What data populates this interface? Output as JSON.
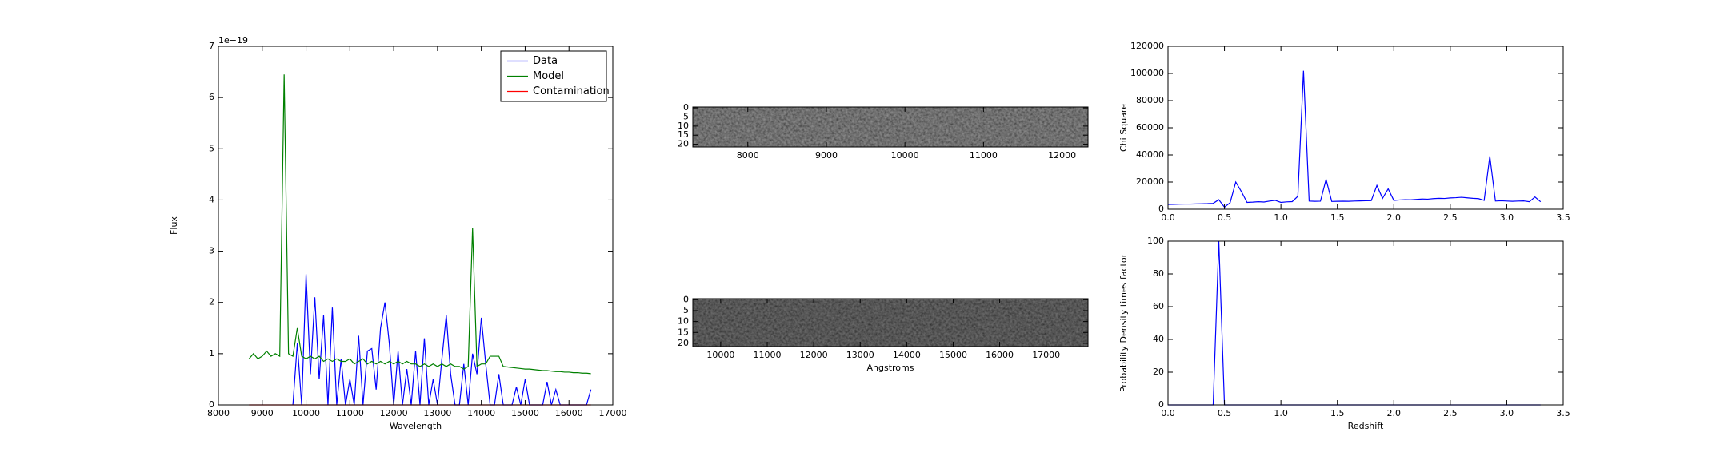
{
  "chart_data": [
    {
      "type": "line",
      "offset_label": "1e−19",
      "xlabel": "Wavelength",
      "ylabel": "Flux",
      "legend": "upper right",
      "xlim": [
        8000,
        17000
      ],
      "ylim": [
        0,
        7
      ],
      "xticks": [
        8000,
        9000,
        10000,
        11000,
        12000,
        13000,
        14000,
        15000,
        16000,
        17000
      ],
      "yticks": [
        0,
        1,
        2,
        3,
        4,
        5,
        6,
        7
      ],
      "x": [
        8700,
        8800,
        8900,
        9000,
        9100,
        9200,
        9300,
        9400,
        9500,
        9600,
        9700,
        9800,
        9900,
        10000,
        10100,
        10200,
        10300,
        10400,
        10500,
        10600,
        10700,
        10800,
        10900,
        11000,
        11100,
        11200,
        11300,
        11400,
        11500,
        11600,
        11700,
        11800,
        11900,
        12000,
        12100,
        12200,
        12300,
        12400,
        12500,
        12600,
        12700,
        12800,
        12900,
        13000,
        13100,
        13200,
        13300,
        13400,
        13500,
        13600,
        13700,
        13800,
        13900,
        14000,
        14100,
        14200,
        14300,
        14400,
        14500,
        14600,
        14700,
        14800,
        14900,
        15000,
        15100,
        15200,
        15300,
        15400,
        15500,
        15600,
        15700,
        15800,
        15900,
        16000,
        16100,
        16200,
        16300,
        16400,
        16500
      ],
      "series": [
        {
          "name": "Data",
          "color": "#0000ff",
          "values": [
            null,
            null,
            null,
            null,
            null,
            null,
            null,
            null,
            null,
            null,
            0,
            1.2,
            0,
            2.55,
            0.6,
            2.1,
            0.5,
            1.75,
            0,
            1.9,
            0,
            0.9,
            0,
            0.5,
            0,
            1.35,
            0,
            1.05,
            1.1,
            0.3,
            1.5,
            2.0,
            1.2,
            0,
            1.05,
            0,
            0.7,
            0,
            1.05,
            0,
            1.3,
            0,
            0.5,
            0,
            0.9,
            1.75,
            0.6,
            0,
            0,
            0.8,
            0,
            1.0,
            0.6,
            1.7,
            0.8,
            0,
            0,
            0.6,
            0,
            0,
            0,
            0.35,
            0,
            0.5,
            0,
            0,
            0,
            0,
            0.45,
            0,
            0.3,
            0,
            0,
            0,
            0,
            0,
            0,
            0,
            0.3
          ]
        },
        {
          "name": "Model",
          "color": "#008000",
          "values": [
            0.9,
            1.0,
            0.9,
            0.95,
            1.05,
            0.95,
            1.0,
            0.95,
            6.45,
            1.0,
            0.95,
            1.5,
            0.95,
            0.9,
            0.95,
            0.9,
            0.95,
            0.85,
            0.9,
            0.85,
            0.9,
            0.85,
            0.85,
            0.9,
            0.8,
            0.85,
            0.9,
            0.8,
            0.85,
            0.8,
            0.85,
            0.8,
            0.85,
            0.8,
            0.85,
            0.8,
            0.85,
            0.8,
            0.8,
            0.75,
            0.8,
            0.75,
            0.8,
            0.75,
            0.8,
            0.75,
            0.8,
            0.75,
            0.75,
            0.7,
            0.75,
            3.45,
            0.75,
            0.8,
            0.8,
            0.95,
            0.95,
            0.95,
            0.75,
            0.74,
            0.73,
            0.72,
            0.71,
            0.7,
            0.7,
            0.69,
            0.68,
            0.67,
            0.67,
            0.66,
            0.65,
            0.65,
            0.64,
            0.64,
            0.63,
            0.63,
            0.62,
            0.62,
            0.61
          ]
        },
        {
          "name": "Contamination",
          "color": "#ff0000",
          "values": [
            0,
            0,
            0,
            0,
            0,
            0,
            0,
            0,
            0,
            0,
            0,
            0,
            0,
            0,
            0,
            0,
            0,
            0,
            0,
            0,
            0,
            0,
            0,
            0,
            0,
            0,
            0,
            0,
            0,
            0,
            0,
            0,
            0,
            0,
            0,
            0,
            0,
            0,
            0,
            0,
            0,
            0,
            0,
            0,
            0,
            0,
            0,
            0,
            0,
            0,
            0,
            0,
            0,
            0,
            0,
            0,
            0,
            0,
            0,
            0,
            0,
            0,
            0,
            0,
            0,
            0,
            0,
            0,
            0,
            0,
            0,
            0,
            0,
            0,
            0,
            0,
            0,
            0,
            0
          ]
        }
      ]
    },
    {
      "type": "image",
      "tone": "#b4b4b4",
      "xlim": [
        7300,
        12330
      ],
      "ylim": [
        21.5,
        -0.5
      ],
      "xticks": [
        8000,
        9000,
        10000,
        11000,
        12000
      ],
      "yticks": [
        0,
        5,
        10,
        15,
        20
      ]
    },
    {
      "type": "image",
      "tone": "#8c8c8c",
      "xlabel": "Angstroms",
      "xlim": [
        9400,
        17900
      ],
      "ylim": [
        21.5,
        -0.5
      ],
      "xticks": [
        10000,
        11000,
        12000,
        13000,
        14000,
        15000,
        16000,
        17000
      ],
      "yticks": [
        0,
        5,
        10,
        15,
        20
      ]
    },
    {
      "type": "line",
      "ylabel": "Chi Square",
      "xlim": [
        0,
        3.5
      ],
      "ylim": [
        0,
        120000
      ],
      "xticks": [
        {
          "value": 0,
          "label": "0.0"
        },
        0.5,
        {
          "value": 1,
          "label": "1.0"
        },
        1.5,
        {
          "value": 2,
          "label": "2.0"
        },
        2.5,
        {
          "value": 3,
          "label": "3.0"
        },
        3.5
      ],
      "yticks": [
        0,
        20000,
        40000,
        60000,
        80000,
        100000,
        120000
      ],
      "x": [
        0,
        0.05,
        0.1,
        0.15,
        0.2,
        0.25,
        0.3,
        0.35,
        0.4,
        0.45,
        0.5,
        0.55,
        0.6,
        0.65,
        0.7,
        0.75,
        0.8,
        0.85,
        0.9,
        0.95,
        1.0,
        1.05,
        1.1,
        1.15,
        1.2,
        1.25,
        1.3,
        1.35,
        1.4,
        1.45,
        1.5,
        1.55,
        1.6,
        1.65,
        1.7,
        1.75,
        1.8,
        1.85,
        1.9,
        1.95,
        2.0,
        2.05,
        2.1,
        2.15,
        2.2,
        2.25,
        2.3,
        2.35,
        2.4,
        2.45,
        2.5,
        2.55,
        2.6,
        2.65,
        2.7,
        2.75,
        2.8,
        2.85,
        2.9,
        2.95,
        3.0,
        3.05,
        3.1,
        3.15,
        3.2,
        3.25,
        3.3
      ],
      "series": [
        {
          "color": "#0000ff",
          "values": [
            3500,
            3600,
            3700,
            3800,
            3800,
            3900,
            4000,
            4100,
            4300,
            7000,
            1500,
            4800,
            20000,
            13000,
            5000,
            5200,
            5500,
            5300,
            6000,
            6500,
            5000,
            5400,
            5600,
            9500,
            102000,
            6000,
            5800,
            5900,
            22000,
            5700,
            5800,
            5900,
            5800,
            6000,
            6100,
            6200,
            6300,
            17500,
            8000,
            15000,
            6500,
            6800,
            7000,
            6900,
            7200,
            7500,
            7400,
            7800,
            8000,
            7900,
            8300,
            8500,
            8800,
            8400,
            8000,
            7800,
            6500,
            39000,
            6000,
            6200,
            6000,
            5800,
            6000,
            6100,
            5500,
            9000,
            5500
          ]
        }
      ]
    },
    {
      "type": "line",
      "xlabel": "Redshift",
      "ylabel": "Probability Density times factor",
      "xlim": [
        0,
        3.5
      ],
      "ylim": [
        0,
        100
      ],
      "xticks": [
        {
          "value": 0,
          "label": "0.0"
        },
        0.5,
        {
          "value": 1,
          "label": "1.0"
        },
        1.5,
        {
          "value": 2,
          "label": "2.0"
        },
        2.5,
        {
          "value": 3,
          "label": "3.0"
        },
        3.5
      ],
      "yticks": [
        0,
        20,
        40,
        60,
        80,
        100
      ],
      "x": [
        0,
        0.05,
        0.1,
        0.15,
        0.2,
        0.25,
        0.3,
        0.35,
        0.4,
        0.45,
        0.5,
        0.55,
        0.6,
        0.65,
        0.7,
        0.75,
        0.8,
        0.85,
        0.9,
        0.95,
        1.0,
        1.05,
        1.1,
        1.15,
        1.2,
        1.25,
        1.3,
        1.35,
        1.4,
        1.45,
        1.5,
        1.55,
        1.6,
        1.65,
        1.7,
        1.75,
        1.8,
        1.85,
        1.9,
        1.95,
        2.0,
        2.05,
        2.1,
        2.15,
        2.2,
        2.25,
        2.3,
        2.35,
        2.4,
        2.45,
        2.5,
        2.55,
        2.6,
        2.65,
        2.7,
        2.75,
        2.8,
        2.85,
        2.9,
        2.95,
        3.0,
        3.05,
        3.1,
        3.15,
        3.2,
        3.25,
        3.3
      ],
      "series": [
        {
          "color": "#0000ff",
          "values": [
            0,
            0,
            0,
            0,
            0,
            0,
            0,
            0,
            0,
            100,
            0,
            0,
            0,
            0,
            0,
            0,
            0,
            0,
            0,
            0,
            0,
            0,
            0,
            0,
            0,
            0,
            0,
            0,
            0,
            0,
            0,
            0,
            0,
            0,
            0,
            0,
            0,
            0,
            0,
            0,
            0,
            0,
            0,
            0,
            0,
            0,
            0,
            0,
            0,
            0,
            0,
            0,
            0,
            0,
            0,
            0,
            0,
            0,
            0,
            0,
            0,
            0,
            0,
            0,
            0,
            0,
            0
          ]
        }
      ]
    }
  ]
}
